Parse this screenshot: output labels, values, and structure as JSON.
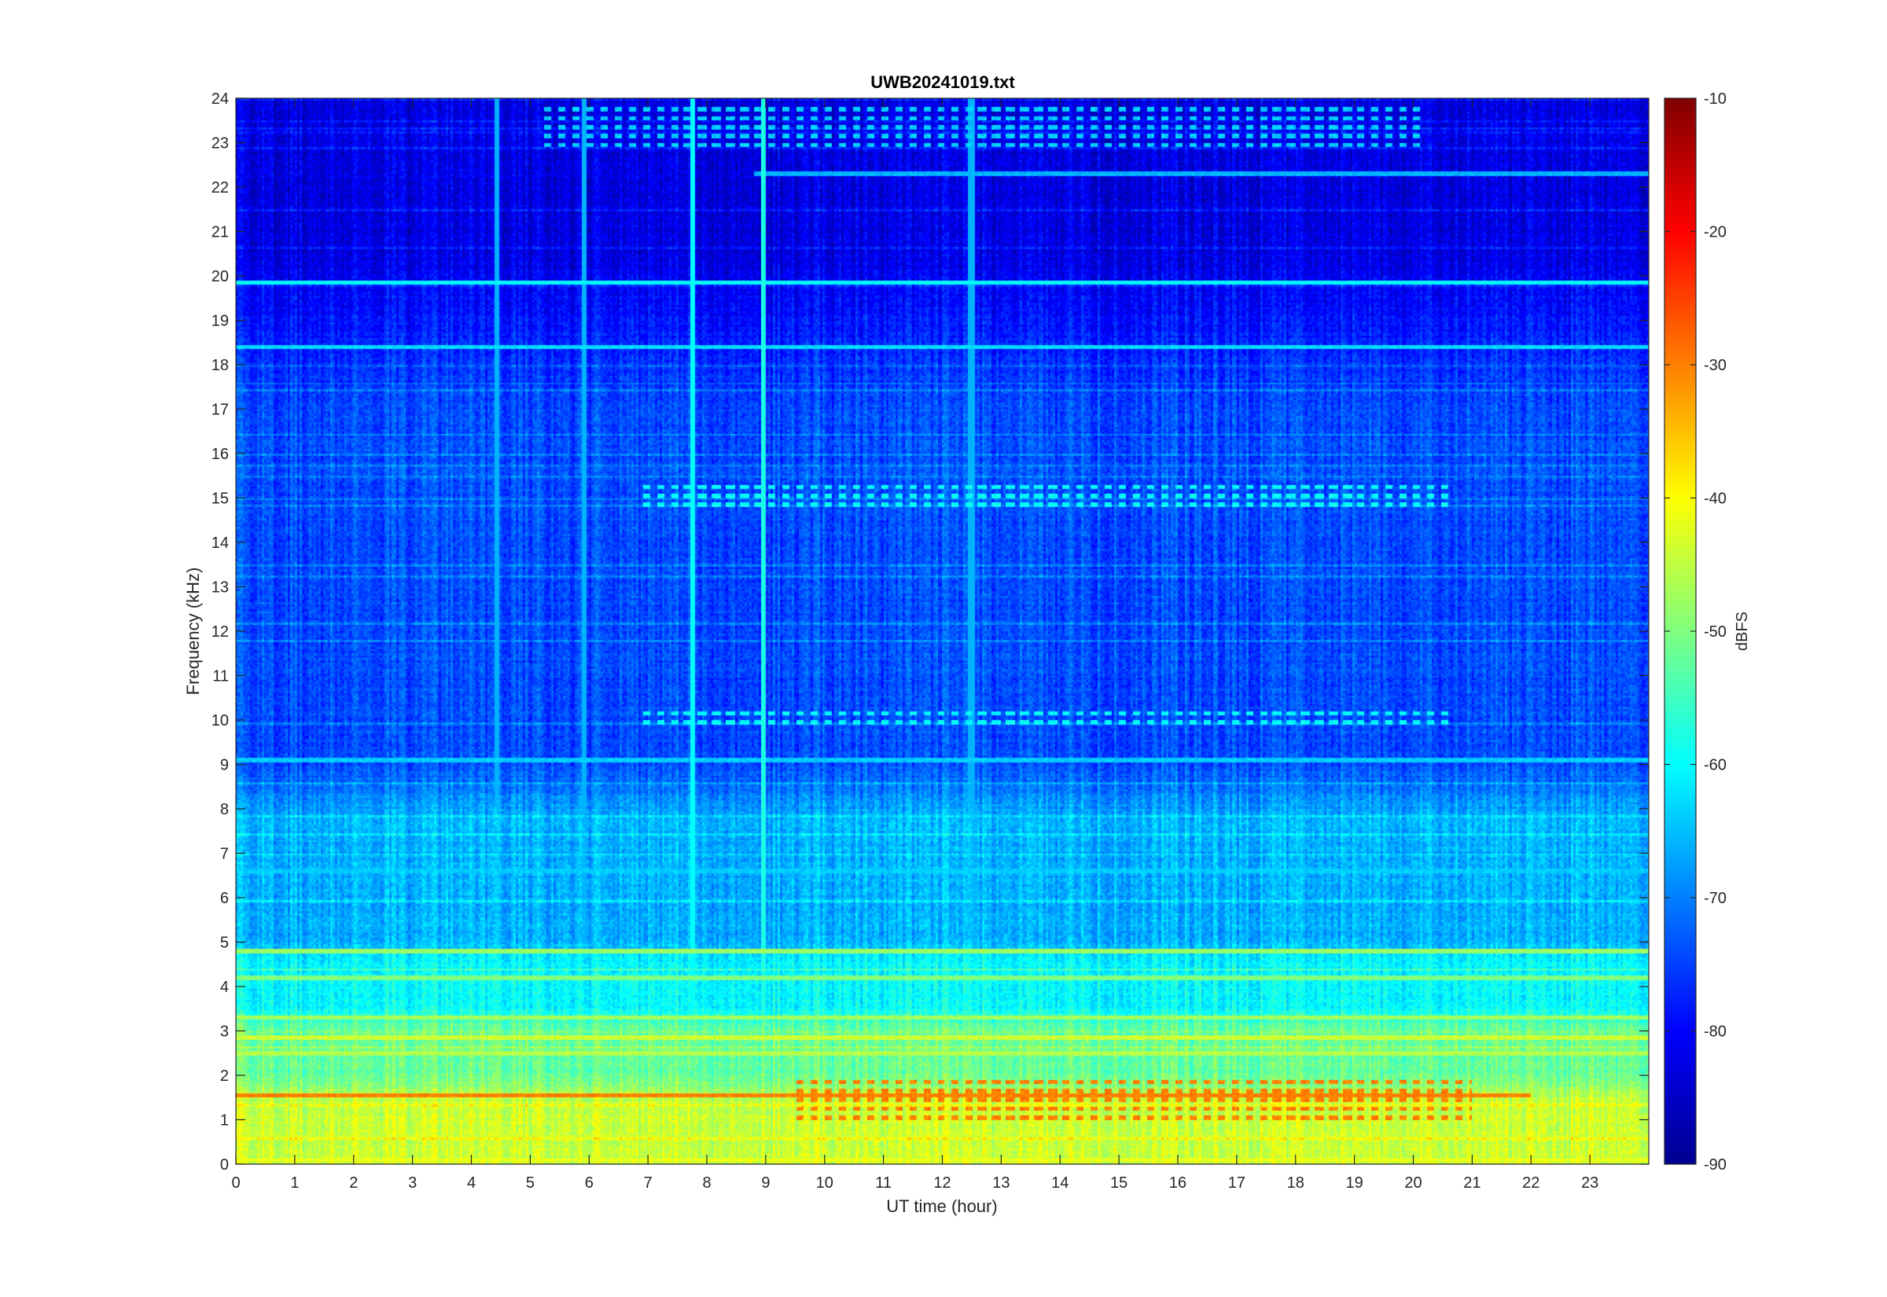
{
  "chart_data": {
    "type": "heatmap",
    "title": "UWB20241019.txt",
    "xlabel": "UT time (hour)",
    "ylabel": "Frequency (kHz)",
    "xlim": [
      0,
      24
    ],
    "ylim": [
      0,
      24
    ],
    "x_ticks": [
      "0",
      "1",
      "2",
      "3",
      "4",
      "5",
      "6",
      "7",
      "8",
      "9",
      "10",
      "11",
      "12",
      "13",
      "14",
      "15",
      "16",
      "17",
      "18",
      "19",
      "20",
      "21",
      "22",
      "23"
    ],
    "y_ticks": [
      "0",
      "1",
      "2",
      "3",
      "4",
      "5",
      "6",
      "7",
      "8",
      "9",
      "10",
      "11",
      "12",
      "13",
      "14",
      "15",
      "16",
      "17",
      "18",
      "19",
      "20",
      "21",
      "22",
      "23",
      "24"
    ],
    "colorbar": {
      "label": "dBFS",
      "range": [
        -90,
        -10
      ],
      "colormap": "jet",
      "ticks": [
        "-90",
        "-80",
        "-70",
        "-60",
        "-50",
        "-40",
        "-30",
        "-20",
        "-10"
      ]
    },
    "grid": false,
    "features": {
      "background_levels_dbfs": [
        {
          "f_from_khz": 0,
          "f_to_khz": 2,
          "level": -44
        },
        {
          "f_from_khz": 2,
          "f_to_khz": 3.5,
          "level": -52
        },
        {
          "f_from_khz": 3.5,
          "f_to_khz": 5,
          "level": -60
        },
        {
          "f_from_khz": 5,
          "f_to_khz": 9,
          "level": -66
        },
        {
          "f_from_khz": 9,
          "f_to_khz": 20.5,
          "level": -74
        },
        {
          "f_from_khz": 20.5,
          "f_to_khz": 24,
          "level": -82
        }
      ],
      "horizontal_lines": [
        {
          "freq_khz": 19.85,
          "t_start": 0,
          "t_end": 24,
          "level": -60
        },
        {
          "freq_khz": 18.4,
          "t_start": 0,
          "t_end": 24,
          "level": -63
        },
        {
          "freq_khz": 22.3,
          "t_start": 8.8,
          "t_end": 24,
          "level": -66
        },
        {
          "freq_khz": 1.55,
          "t_start": 0,
          "t_end": 22,
          "level": -30
        },
        {
          "freq_khz": 4.8,
          "t_start": 0,
          "t_end": 24,
          "level": -48
        },
        {
          "freq_khz": 4.2,
          "t_start": 0,
          "t_end": 24,
          "level": -50
        },
        {
          "freq_khz": 3.3,
          "t_start": 0,
          "t_end": 24,
          "level": -47
        },
        {
          "freq_khz": 2.85,
          "t_start": 0,
          "t_end": 24,
          "level": -44
        },
        {
          "freq_khz": 2.5,
          "t_start": 0,
          "t_end": 24,
          "level": -46
        },
        {
          "freq_khz": 0.6,
          "t_start": 0,
          "t_end": 24,
          "level": -44
        },
        {
          "freq_khz": 0.1,
          "t_start": 0,
          "t_end": 24,
          "level": -42
        },
        {
          "freq_khz": 9.1,
          "t_start": 0,
          "t_end": 24,
          "level": -64
        },
        {
          "freq_khz": 6.6,
          "t_start": 0,
          "t_end": 24,
          "level": -64
        }
      ],
      "periodic_bursts": [
        {
          "freq_khz_from": 14.8,
          "freq_khz_to": 15.4,
          "t_start": 6.8,
          "t_end": 20.6,
          "level": -60
        },
        {
          "freq_khz_from": 9.9,
          "freq_khz_to": 10.3,
          "t_start": 6.8,
          "t_end": 20.6,
          "level": -60
        },
        {
          "freq_khz_from": 22.9,
          "freq_khz_to": 23.9,
          "t_start": 5.2,
          "t_end": 20.2,
          "level": -64
        },
        {
          "freq_khz_from": 1.0,
          "freq_khz_to": 2.0,
          "t_start": 9.5,
          "t_end": 21.0,
          "level": -30
        }
      ],
      "vertical_lines": [
        {
          "t": 7.75,
          "f_max_khz": 24,
          "level": -60
        },
        {
          "t": 8.95,
          "f_max_khz": 24,
          "level": -58
        },
        {
          "t": 4.45,
          "f_max_khz": 24,
          "level": -66
        },
        {
          "t": 5.9,
          "f_max_khz": 24,
          "level": -66
        },
        {
          "t": 12.5,
          "f_max_khz": 24,
          "level": -66
        }
      ]
    }
  }
}
